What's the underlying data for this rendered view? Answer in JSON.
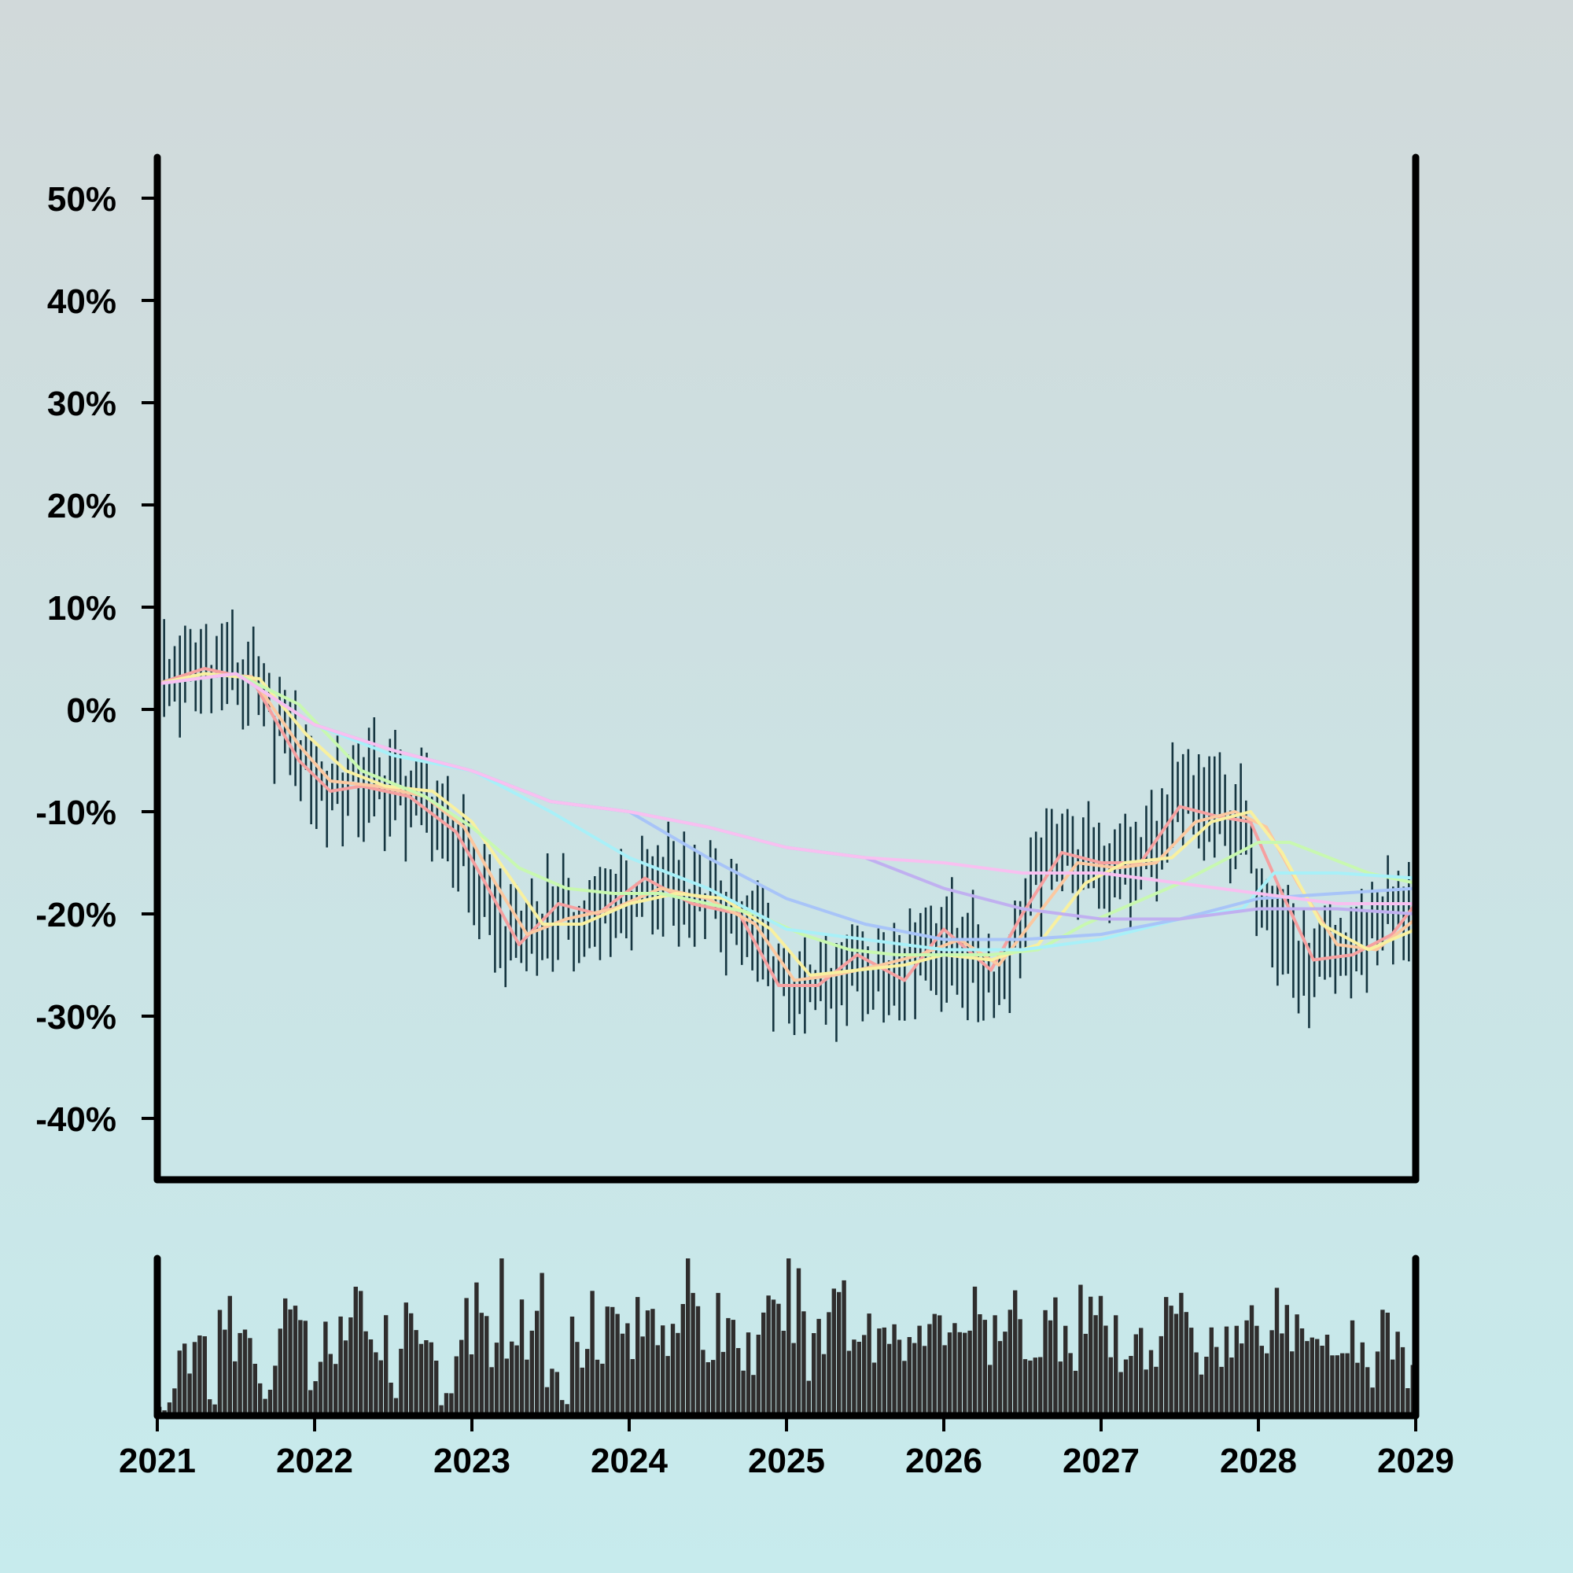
{
  "chart_data": {
    "type": "line",
    "subtype": "ohlc-bars-with-moving-averages-and-volume",
    "title": "",
    "xlabel": "",
    "ylabel": "",
    "xlim": [
      2021,
      2029
    ],
    "ylim": [
      -46,
      54
    ],
    "grid": false,
    "legend": "none",
    "x_ticks": [
      {
        "value": 2021,
        "label": "2021"
      },
      {
        "value": 2022,
        "label": "2022"
      },
      {
        "value": 2023,
        "label": "2023"
      },
      {
        "value": 2024,
        "label": "2024"
      },
      {
        "value": 2025,
        "label": "2025"
      },
      {
        "value": 2026,
        "label": "2026"
      },
      {
        "value": 2027,
        "label": "2027"
      },
      {
        "value": 2028,
        "label": "2028"
      },
      {
        "value": 2029,
        "label": "2029"
      }
    ],
    "y_ticks": [
      {
        "value": 50,
        "label": "50%"
      },
      {
        "value": 40,
        "label": "40%"
      },
      {
        "value": 30,
        "label": "30%"
      },
      {
        "value": 20,
        "label": "20%"
      },
      {
        "value": 10,
        "label": "10%"
      },
      {
        "value": 0,
        "label": "0%"
      },
      {
        "value": -10,
        "label": "-10%"
      },
      {
        "value": -20,
        "label": "-20%"
      },
      {
        "value": -30,
        "label": "-30%"
      },
      {
        "value": -40,
        "label": "-40%"
      }
    ],
    "price_anchors": {
      "x": [
        2021.0,
        2021.3,
        2021.6,
        2021.9,
        2022.1,
        2022.3,
        2022.6,
        2022.9,
        2023.05,
        2023.25,
        2023.5,
        2023.75,
        2024.0,
        2024.3,
        2024.55,
        2024.8,
        2025.0,
        2025.2,
        2025.4,
        2025.65,
        2025.9,
        2026.15,
        2026.35,
        2026.55,
        2026.75,
        2026.95,
        2027.2,
        2027.45,
        2027.7,
        2027.9,
        2028.1,
        2028.3,
        2028.55,
        2028.8,
        2029.0
      ],
      "y": [
        2,
        5,
        3,
        -4,
        -8,
        -7,
        -8,
        -12,
        -18,
        -23,
        -20,
        -21,
        -18,
        -17,
        -19,
        -22,
        -27,
        -28,
        -25,
        -26,
        -22,
        -24,
        -26,
        -18,
        -13,
        -15,
        -16,
        -10,
        -9,
        -12,
        -20,
        -26,
        -24,
        -20,
        -19
      ]
    },
    "moving_averages": [
      {
        "color": "#f5a0a0",
        "x": [
          2021.0,
          2021.3,
          2021.6,
          2021.9,
          2022.1,
          2022.3,
          2022.6,
          2022.9,
          2023.05,
          2023.3,
          2023.55,
          2023.8,
          2024.1,
          2024.4,
          2024.7,
          2024.95,
          2025.2,
          2025.45,
          2025.75,
          2026.0,
          2026.3,
          2026.5,
          2026.75,
          2027.0,
          2027.25,
          2027.5,
          2027.75,
          2027.95,
          2028.15,
          2028.35,
          2028.6,
          2028.85,
          2029.0
        ],
        "y": [
          2.5,
          4,
          3,
          -5,
          -8,
          -7.5,
          -8.5,
          -12,
          -16,
          -23,
          -19,
          -20,
          -16.5,
          -19,
          -20,
          -27,
          -27,
          -24,
          -26.5,
          -21.5,
          -25.5,
          -20,
          -14,
          -15,
          -15,
          -9.5,
          -10.5,
          -11,
          -18,
          -24.5,
          -24,
          -22,
          -19
        ]
      },
      {
        "color": "#fbc8a0",
        "x": [
          2021.0,
          2021.3,
          2021.6,
          2021.9,
          2022.1,
          2022.4,
          2022.7,
          2022.95,
          2023.15,
          2023.35,
          2023.6,
          2023.9,
          2024.2,
          2024.5,
          2024.8,
          2025.05,
          2025.3,
          2025.6,
          2025.85,
          2026.1,
          2026.35,
          2026.6,
          2026.85,
          2027.1,
          2027.35,
          2027.6,
          2027.85,
          2028.05,
          2028.25,
          2028.5,
          2028.75,
          2029.0
        ],
        "y": [
          2.5,
          3.5,
          3.2,
          -3.5,
          -7,
          -7.5,
          -8.5,
          -11.5,
          -17,
          -22,
          -20.5,
          -19.5,
          -17.5,
          -18.5,
          -21,
          -26.5,
          -26,
          -25,
          -24,
          -22.5,
          -25,
          -20,
          -15,
          -15.5,
          -15,
          -11,
          -10,
          -11.5,
          -17,
          -23,
          -23.5,
          -20.5
        ]
      },
      {
        "color": "#f8f0a0",
        "x": [
          2021.0,
          2021.3,
          2021.65,
          2021.95,
          2022.2,
          2022.45,
          2022.75,
          2023.0,
          2023.2,
          2023.45,
          2023.7,
          2024.0,
          2024.3,
          2024.6,
          2024.9,
          2025.15,
          2025.45,
          2025.75,
          2026.0,
          2026.3,
          2026.6,
          2026.9,
          2027.15,
          2027.45,
          2027.7,
          2027.95,
          2028.15,
          2028.4,
          2028.7,
          2029.0
        ],
        "y": [
          2.5,
          3.5,
          3,
          -2.5,
          -6,
          -7.5,
          -8,
          -11,
          -15.5,
          -21,
          -21,
          -19,
          -18,
          -18.5,
          -21.5,
          -26,
          -25.5,
          -25,
          -24,
          -24.5,
          -23,
          -17,
          -15,
          -14.5,
          -11,
          -10,
          -14,
          -21,
          -23.5,
          -21.5
        ]
      },
      {
        "color": "#c8f8b0",
        "x": [
          2021.0,
          2021.5,
          2021.9,
          2022.3,
          2022.7,
          2023.0,
          2023.3,
          2023.6,
          2023.9,
          2024.2,
          2024.5,
          2024.8,
          2025.1,
          2025.4,
          2025.7,
          2026.0,
          2026.3,
          2026.6,
          2026.9,
          2027.2,
          2027.5,
          2027.75,
          2028.0,
          2028.2,
          2028.45,
          2028.7,
          2029.0
        ],
        "y": [
          2.5,
          3.5,
          0.5,
          -6,
          -8.5,
          -11.5,
          -15.5,
          -17.5,
          -18,
          -18,
          -19,
          -20,
          -22,
          -23.5,
          -24,
          -24,
          -24,
          -23.5,
          -21,
          -19,
          -17,
          -15,
          -13,
          -13,
          -14.5,
          -16,
          -17
        ]
      },
      {
        "color": "#a8f0f8",
        "x": [
          2021.0,
          2021.5,
          2022.0,
          2022.5,
          2023.0,
          2023.5,
          2024.0,
          2024.5,
          2025.0,
          2025.5,
          2026.0,
          2026.5,
          2027.0,
          2027.5,
          2027.9,
          2028.1,
          2028.5,
          2029.0
        ],
        "y": [
          2.5,
          3.5,
          -1.5,
          -4.5,
          -6,
          -10,
          -14.5,
          -17.5,
          -21.5,
          -22.5,
          -23.5,
          -23.5,
          -22.5,
          -20.5,
          -19.5,
          -16,
          -16,
          -16.5
        ]
      },
      {
        "color": "#a8c4f8",
        "x": [
          2021.0,
          2021.5,
          2022.0,
          2022.5,
          2023.0,
          2023.5,
          2024.0,
          2024.5,
          2025.0,
          2025.5,
          2026.0,
          2026.5,
          2027.0,
          2027.5,
          2028.0,
          2028.5,
          2029.0
        ],
        "y": [
          2.5,
          3.5,
          -1.5,
          -4,
          -6,
          -9,
          -10,
          -14.5,
          -18.5,
          -21,
          -22.5,
          -22.5,
          -22,
          -20.5,
          -18.5,
          -18,
          -17.5
        ]
      },
      {
        "color": "#c0b0f0",
        "x": [
          2021.0,
          2021.5,
          2022.0,
          2022.5,
          2023.0,
          2023.5,
          2024.0,
          2024.5,
          2025.0,
          2025.5,
          2026.0,
          2026.5,
          2027.0,
          2027.5,
          2028.0,
          2028.5,
          2029.0
        ],
        "y": [
          2.5,
          3.5,
          -1.5,
          -4,
          -6,
          -9,
          -10,
          -11.5,
          -13.5,
          -14.5,
          -17.5,
          -19.5,
          -20.5,
          -20.5,
          -19.5,
          -19.5,
          -20
        ]
      },
      {
        "color": "#f8c0f0",
        "x": [
          2021.0,
          2021.5,
          2022.0,
          2022.5,
          2023.0,
          2023.5,
          2024.0,
          2024.5,
          2025.0,
          2025.5,
          2026.0,
          2026.5,
          2027.0,
          2027.5,
          2028.0,
          2028.5,
          2029.0
        ],
        "y": [
          2.5,
          3.5,
          -1.5,
          -4,
          -6,
          -9,
          -10,
          -11.5,
          -13.5,
          -14.5,
          -15,
          -16,
          -16,
          -17,
          -18,
          -19,
          -19
        ]
      }
    ],
    "volume": {
      "ylim": [
        0,
        1
      ],
      "samples": [
        0.05,
        0.12,
        0.35,
        0.45,
        0.1,
        0.6,
        0.55,
        0.4,
        0.15,
        0.55,
        0.6,
        0.45,
        0.25,
        0.5,
        0.55,
        0.6,
        0.4,
        0.6,
        0.2,
        0.55,
        0.65,
        0.45,
        0.1,
        0.45,
        0.6,
        0.5,
        0.75,
        0.6,
        0.55,
        0.7,
        0.25,
        0.1,
        0.5,
        0.75,
        0.55,
        0.6,
        0.5,
        0.55,
        0.7,
        0.6,
        0.85,
        0.55,
        0.45,
        0.6,
        0.55,
        0.4,
        0.5,
        0.55,
        0.75,
        0.65,
        0.4,
        0.55,
        0.85,
        0.6,
        0.55,
        0.5,
        0.55,
        0.6,
        0.45,
        0.5,
        0.55,
        0.65,
        0.6,
        0.55,
        0.45,
        0.55,
        0.6,
        0.45,
        0.55,
        0.6,
        0.5,
        0.7,
        0.55,
        0.45,
        0.3,
        0.6,
        0.45,
        0.55,
        0.75,
        0.5,
        0.35,
        0.55,
        0.45,
        0.5,
        0.6,
        0.7,
        0.65,
        0.55,
        0.5,
        0.65,
        0.45,
        0.55,
        0.4,
        0.3,
        0.55,
        0.5,
        0.25
      ]
    }
  }
}
